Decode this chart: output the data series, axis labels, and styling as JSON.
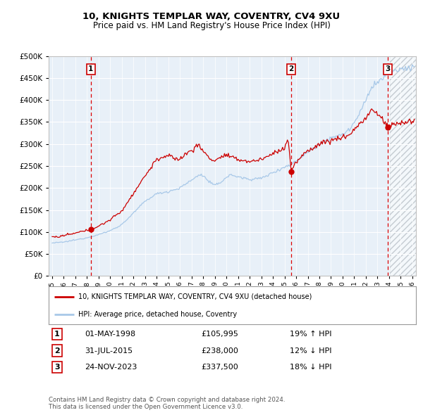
{
  "title1": "10, KNIGHTS TEMPLAR WAY, COVENTRY, CV4 9XU",
  "title2": "Price paid vs. HM Land Registry's House Price Index (HPI)",
  "legend_line1": "10, KNIGHTS TEMPLAR WAY, COVENTRY, CV4 9XU (detached house)",
  "legend_line2": "HPI: Average price, detached house, Coventry",
  "footer": "Contains HM Land Registry data © Crown copyright and database right 2024.\nThis data is licensed under the Open Government Licence v3.0.",
  "hpi_color": "#a8c8e8",
  "price_color": "#cc0000",
  "plot_bg": "#e8f0f8",
  "grid_color": "#ffffff",
  "ylim": [
    0,
    500000
  ],
  "xlim_start": 1994.7,
  "xlim_end": 2026.3,
  "sale1_year_f": 1998.33,
  "sale1_price": 105995,
  "sale2_year_f": 2015.58,
  "sale2_price": 238000,
  "sale3_year_f": 2023.9,
  "sale3_price": 337500,
  "hatch_start": 2024.08,
  "sales_table": [
    [
      "1",
      "01-MAY-1998",
      "£105,995",
      "19% ↑ HPI"
    ],
    [
      "2",
      "31-JUL-2015",
      "£238,000",
      "12% ↓ HPI"
    ],
    [
      "3",
      "24-NOV-2023",
      "£337,500",
      "18% ↓ HPI"
    ]
  ]
}
